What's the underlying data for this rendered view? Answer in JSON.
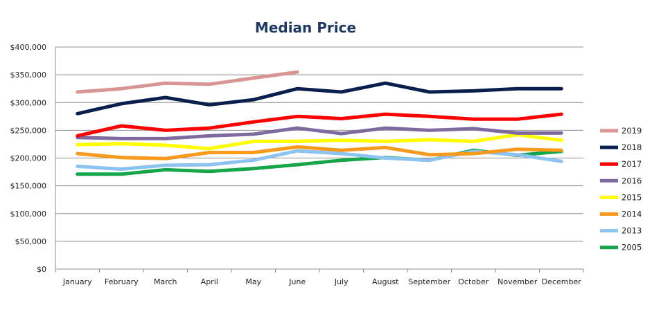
{
  "chart_data": {
    "type": "line",
    "title": "Median Price",
    "xlabel": "",
    "ylabel": "",
    "ylim": [
      0,
      400000
    ],
    "y_tick_values": [
      0,
      50000,
      100000,
      150000,
      200000,
      250000,
      300000,
      350000,
      400000
    ],
    "y_tick_labels": [
      "$0",
      "$50,000",
      "$100,000",
      "$150,000",
      "$200,000",
      "$250,000",
      "$300,000",
      "$350,000",
      "$400,000"
    ],
    "grid": true,
    "legend_position": "right",
    "categories": [
      "January",
      "February",
      "March",
      "April",
      "May",
      "June",
      "July",
      "August",
      "September",
      "October",
      "November",
      "December"
    ],
    "series": [
      {
        "name": "2019",
        "color": "#D99594",
        "values": [
          319000,
          325000,
          335000,
          333000,
          344000,
          355000,
          null,
          null,
          null,
          null,
          null,
          null
        ]
      },
      {
        "name": "2018",
        "color": "#0B1F4F",
        "values": [
          280000,
          298000,
          309000,
          296000,
          305000,
          325000,
          319000,
          335000,
          319000,
          321000,
          325000,
          325000
        ]
      },
      {
        "name": "2017",
        "color": "#FF0000",
        "values": [
          240000,
          258000,
          250000,
          254000,
          265000,
          275000,
          271000,
          279000,
          275000,
          270000,
          270000,
          279000
        ]
      },
      {
        "name": "2016",
        "color": "#7F6A9F",
        "values": [
          237000,
          235000,
          235000,
          240000,
          243000,
          254000,
          244000,
          254000,
          250000,
          253000,
          245000,
          245000
        ]
      },
      {
        "name": "2015",
        "color": "#FFFF00",
        "values": [
          224000,
          226000,
          223000,
          217000,
          230000,
          230000,
          232000,
          230000,
          233000,
          230000,
          242000,
          232000
        ]
      },
      {
        "name": "2014",
        "color": "#F79A1E",
        "values": [
          208000,
          201000,
          199000,
          210000,
          210000,
          220000,
          214000,
          219000,
          206000,
          208000,
          216000,
          214000
        ]
      },
      {
        "name": "2013",
        "color": "#8DC3F0",
        "values": [
          185000,
          180000,
          187000,
          188000,
          196000,
          213000,
          208000,
          200000,
          196000,
          212000,
          206000,
          194000
        ]
      },
      {
        "name": "2005",
        "color": "#17A54A",
        "values": [
          171000,
          171000,
          179000,
          176000,
          181000,
          188000,
          196000,
          201000,
          196000,
          214000,
          205000,
          212000
        ]
      }
    ]
  }
}
